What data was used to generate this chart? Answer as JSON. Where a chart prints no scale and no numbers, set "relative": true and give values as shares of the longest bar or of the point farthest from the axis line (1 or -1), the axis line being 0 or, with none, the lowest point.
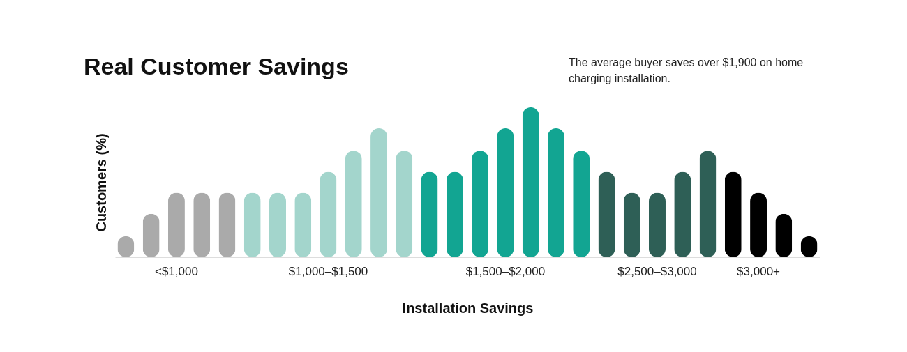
{
  "chart_data": {
    "type": "bar",
    "title": "Real Customer Savings",
    "xlabel": "Installation Savings",
    "ylabel": "Customers (%)",
    "relative": true,
    "legend": false,
    "annotations": [
      "The average buyer saves over $1,900 on home charging installation."
    ],
    "categories": [
      null,
      null,
      "<$1,000",
      null,
      null,
      null,
      null,
      null,
      "$1,000–$1,500",
      null,
      null,
      null,
      null,
      null,
      null,
      "$1,500–$2,000",
      null,
      null,
      null,
      null,
      null,
      "$2,500–$3,000",
      null,
      null,
      null,
      "$3,000+",
      null,
      null
    ],
    "series": [
      {
        "color": "#aaaaaa",
        "values": [
          0.14,
          0.29,
          0.43,
          0.43,
          0.43,
          null,
          null,
          null,
          null,
          null,
          null,
          null,
          null,
          null,
          null,
          null,
          null,
          null,
          null,
          null,
          null,
          null,
          null,
          null,
          null,
          null,
          null,
          null
        ]
      },
      {
        "color": "#a3d5cc",
        "values": [
          null,
          null,
          null,
          null,
          null,
          0.43,
          0.43,
          0.43,
          0.57,
          0.71,
          0.86,
          0.71,
          null,
          null,
          null,
          null,
          null,
          null,
          null,
          null,
          null,
          null,
          null,
          null,
          null,
          null,
          null,
          null
        ]
      },
      {
        "color": "#12a592",
        "values": [
          null,
          null,
          null,
          null,
          null,
          null,
          null,
          null,
          null,
          null,
          null,
          null,
          0.57,
          0.57,
          0.71,
          0.86,
          1,
          0.86,
          0.71,
          null,
          null,
          null,
          null,
          null,
          null,
          null,
          null,
          null
        ]
      },
      {
        "color": "#2e5f56",
        "values": [
          null,
          null,
          null,
          null,
          null,
          null,
          null,
          null,
          null,
          null,
          null,
          null,
          null,
          null,
          null,
          null,
          null,
          null,
          null,
          0.57,
          0.43,
          0.43,
          0.57,
          0.71,
          null,
          null,
          null,
          null
        ]
      },
      {
        "color": "#000000",
        "values": [
          null,
          null,
          null,
          null,
          null,
          null,
          null,
          null,
          null,
          null,
          null,
          null,
          null,
          null,
          null,
          null,
          null,
          null,
          null,
          null,
          null,
          null,
          null,
          null,
          0.57,
          0.43,
          0.29,
          0.14
        ]
      }
    ]
  }
}
